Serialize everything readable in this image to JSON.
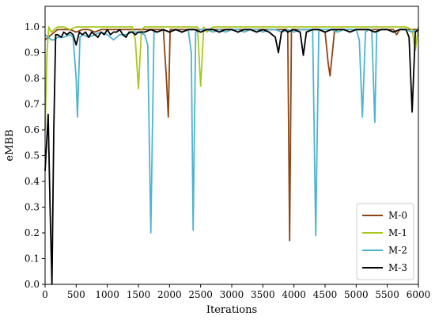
{
  "chart_data": {
    "type": "line",
    "title": "",
    "xlabel": "Iterations",
    "ylabel": "eMBB",
    "xlim": [
      0,
      6000
    ],
    "ylim": [
      0,
      1.08
    ],
    "xticks": [
      "0",
      "500",
      "1000",
      "1500",
      "2000",
      "2500",
      "3000",
      "3500",
      "4000",
      "4500",
      "5000",
      "5500",
      "6000"
    ],
    "yticks": [
      "0.0",
      "0.1",
      "0.2",
      "0.3",
      "0.4",
      "0.5",
      "0.6",
      "0.7",
      "0.8",
      "0.9",
      "1.0"
    ],
    "legend_position": "lower-right",
    "series": [
      {
        "name": "M-0",
        "color": "#8b4513",
        "x": [
          0,
          100,
          200,
          300,
          400,
          500,
          600,
          700,
          800,
          900,
          1000,
          1100,
          1200,
          1300,
          1400,
          1500,
          1600,
          1700,
          1800,
          1900,
          1950,
          1980,
          2010,
          2100,
          2200,
          2300,
          2400,
          2500,
          2600,
          2700,
          2800,
          2900,
          3000,
          3100,
          3200,
          3300,
          3400,
          3500,
          3600,
          3700,
          3800,
          3850,
          3900,
          3930,
          3960,
          4000,
          4100,
          4200,
          4300,
          4400,
          4500,
          4550,
          4580,
          4650,
          4700,
          4800,
          4900,
          5000,
          5100,
          5200,
          5300,
          5400,
          5500,
          5600,
          5650,
          5700,
          5800,
          5900,
          6000
        ],
        "y": [
          0.95,
          0.97,
          0.99,
          0.99,
          0.99,
          0.98,
          0.99,
          0.99,
          0.98,
          0.99,
          0.99,
          0.99,
          0.99,
          0.99,
          0.99,
          0.99,
          0.99,
          0.99,
          0.99,
          0.99,
          0.8,
          0.65,
          0.99,
          0.99,
          0.99,
          0.99,
          0.99,
          0.99,
          0.99,
          0.99,
          0.99,
          0.99,
          0.99,
          0.99,
          0.99,
          0.99,
          0.99,
          0.99,
          0.99,
          0.99,
          0.99,
          0.99,
          0.99,
          0.17,
          0.99,
          0.99,
          0.99,
          0.99,
          0.99,
          0.99,
          0.98,
          0.86,
          0.81,
          0.98,
          0.99,
          0.99,
          0.99,
          0.99,
          0.99,
          0.99,
          0.99,
          0.99,
          0.99,
          0.99,
          0.97,
          0.99,
          0.99,
          0.99,
          0.99
        ]
      },
      {
        "name": "M-1",
        "color": "#a8c81e",
        "x": [
          0,
          30,
          60,
          100,
          200,
          300,
          400,
          500,
          600,
          700,
          800,
          900,
          1000,
          1100,
          1200,
          1300,
          1400,
          1450,
          1500,
          1550,
          1600,
          1700,
          1800,
          1900,
          2000,
          2100,
          2200,
          2300,
          2400,
          2450,
          2500,
          2550,
          2600,
          2700,
          2800,
          2900,
          3000,
          3100,
          3200,
          3300,
          3400,
          3500,
          3600,
          3700,
          3800,
          3900,
          4000,
          4100,
          4200,
          4300,
          4400,
          4500,
          4600,
          4700,
          4800,
          4900,
          5000,
          5100,
          5200,
          5300,
          5400,
          5500,
          5600,
          5700,
          5800,
          5900,
          5950,
          6000
        ],
        "y": [
          0.6,
          0.9,
          1.0,
          0.98,
          1.0,
          1.0,
          0.99,
          1.0,
          1.0,
          1.0,
          1.0,
          1.0,
          1.0,
          1.0,
          1.0,
          1.0,
          1.0,
          0.95,
          0.76,
          0.99,
          1.0,
          1.0,
          1.0,
          1.0,
          1.0,
          1.0,
          1.0,
          1.0,
          1.0,
          1.0,
          0.77,
          1.0,
          0.98,
          1.0,
          1.0,
          1.0,
          1.0,
          1.0,
          1.0,
          1.0,
          1.0,
          1.0,
          1.0,
          1.0,
          1.0,
          1.0,
          1.0,
          1.0,
          1.0,
          1.0,
          1.0,
          1.0,
          1.0,
          1.0,
          1.0,
          1.0,
          1.0,
          1.0,
          1.0,
          1.0,
          1.0,
          1.0,
          1.0,
          1.0,
          1.0,
          0.99,
          0.91,
          1.0
        ]
      },
      {
        "name": "M-2",
        "color": "#4fb3cf",
        "x": [
          0,
          50,
          100,
          150,
          200,
          300,
          400,
          450,
          500,
          520,
          560,
          600,
          700,
          800,
          900,
          1000,
          1100,
          1200,
          1300,
          1400,
          1500,
          1600,
          1650,
          1700,
          1750,
          1800,
          1900,
          2000,
          2100,
          2200,
          2300,
          2350,
          2380,
          2420,
          2500,
          2600,
          2700,
          2800,
          2900,
          3000,
          3100,
          3200,
          3300,
          3400,
          3500,
          3600,
          3700,
          3800,
          3900,
          4000,
          4100,
          4200,
          4300,
          4350,
          4400,
          4500,
          4600,
          4700,
          4800,
          4900,
          5000,
          5050,
          5100,
          5150,
          5200,
          5250,
          5300,
          5330,
          5400,
          5500,
          5600,
          5700,
          5800,
          5900,
          6000
        ],
        "y": [
          0.97,
          0.96,
          0.95,
          0.95,
          0.96,
          0.96,
          0.97,
          0.96,
          0.8,
          0.65,
          0.96,
          0.97,
          0.96,
          0.97,
          0.98,
          0.97,
          0.95,
          0.97,
          0.97,
          0.98,
          0.98,
          0.97,
          0.93,
          0.2,
          0.98,
          0.98,
          0.99,
          0.98,
          0.99,
          0.98,
          0.99,
          0.9,
          0.21,
          0.98,
          0.99,
          0.99,
          0.98,
          0.99,
          0.98,
          0.99,
          0.99,
          0.98,
          0.99,
          0.99,
          0.98,
          0.99,
          0.99,
          0.98,
          0.99,
          0.98,
          0.99,
          0.99,
          0.99,
          0.19,
          0.99,
          0.99,
          0.99,
          0.98,
          0.99,
          0.99,
          0.99,
          0.95,
          0.65,
          0.98,
          0.99,
          0.99,
          0.63,
          0.98,
          0.99,
          0.99,
          0.98,
          0.99,
          0.99,
          0.98,
          0.99
        ]
      },
      {
        "name": "M-3",
        "color": "#000000",
        "x": [
          0,
          50,
          80,
          110,
          140,
          170,
          200,
          260,
          300,
          350,
          400,
          450,
          500,
          550,
          600,
          650,
          700,
          750,
          800,
          850,
          900,
          950,
          1000,
          1050,
          1100,
          1150,
          1200,
          1250,
          1300,
          1350,
          1400,
          1450,
          1500,
          1600,
          1700,
          1800,
          1900,
          2000,
          2100,
          2200,
          2300,
          2400,
          2500,
          2600,
          2700,
          2800,
          2900,
          3000,
          3100,
          3200,
          3300,
          3400,
          3500,
          3600,
          3700,
          3750,
          3800,
          3850,
          3900,
          4000,
          4100,
          4150,
          4200,
          4300,
          4400,
          4500,
          4600,
          4700,
          4800,
          4900,
          5000,
          5100,
          5200,
          5300,
          5400,
          5500,
          5600,
          5700,
          5800,
          5850,
          5900,
          5950,
          6000
        ],
        "y": [
          0.44,
          0.66,
          0.3,
          0.0,
          0.6,
          0.97,
          0.97,
          0.96,
          0.98,
          0.97,
          0.98,
          0.97,
          0.93,
          0.98,
          0.97,
          0.98,
          0.96,
          0.98,
          0.97,
          0.96,
          0.98,
          0.97,
          0.99,
          0.97,
          0.98,
          0.98,
          0.99,
          0.97,
          0.96,
          0.98,
          0.98,
          0.97,
          0.98,
          0.98,
          0.99,
          0.98,
          0.99,
          0.98,
          0.99,
          0.98,
          0.99,
          0.99,
          0.98,
          0.99,
          0.99,
          0.98,
          0.99,
          0.99,
          0.98,
          0.99,
          0.99,
          0.98,
          0.99,
          0.98,
          0.96,
          0.9,
          0.98,
          0.99,
          0.98,
          0.99,
          0.98,
          0.89,
          0.98,
          0.99,
          0.99,
          0.98,
          0.99,
          0.99,
          0.99,
          0.98,
          0.99,
          0.99,
          0.99,
          0.98,
          0.99,
          0.99,
          0.98,
          0.99,
          0.99,
          0.96,
          0.67,
          0.98,
          0.99
        ]
      }
    ]
  }
}
